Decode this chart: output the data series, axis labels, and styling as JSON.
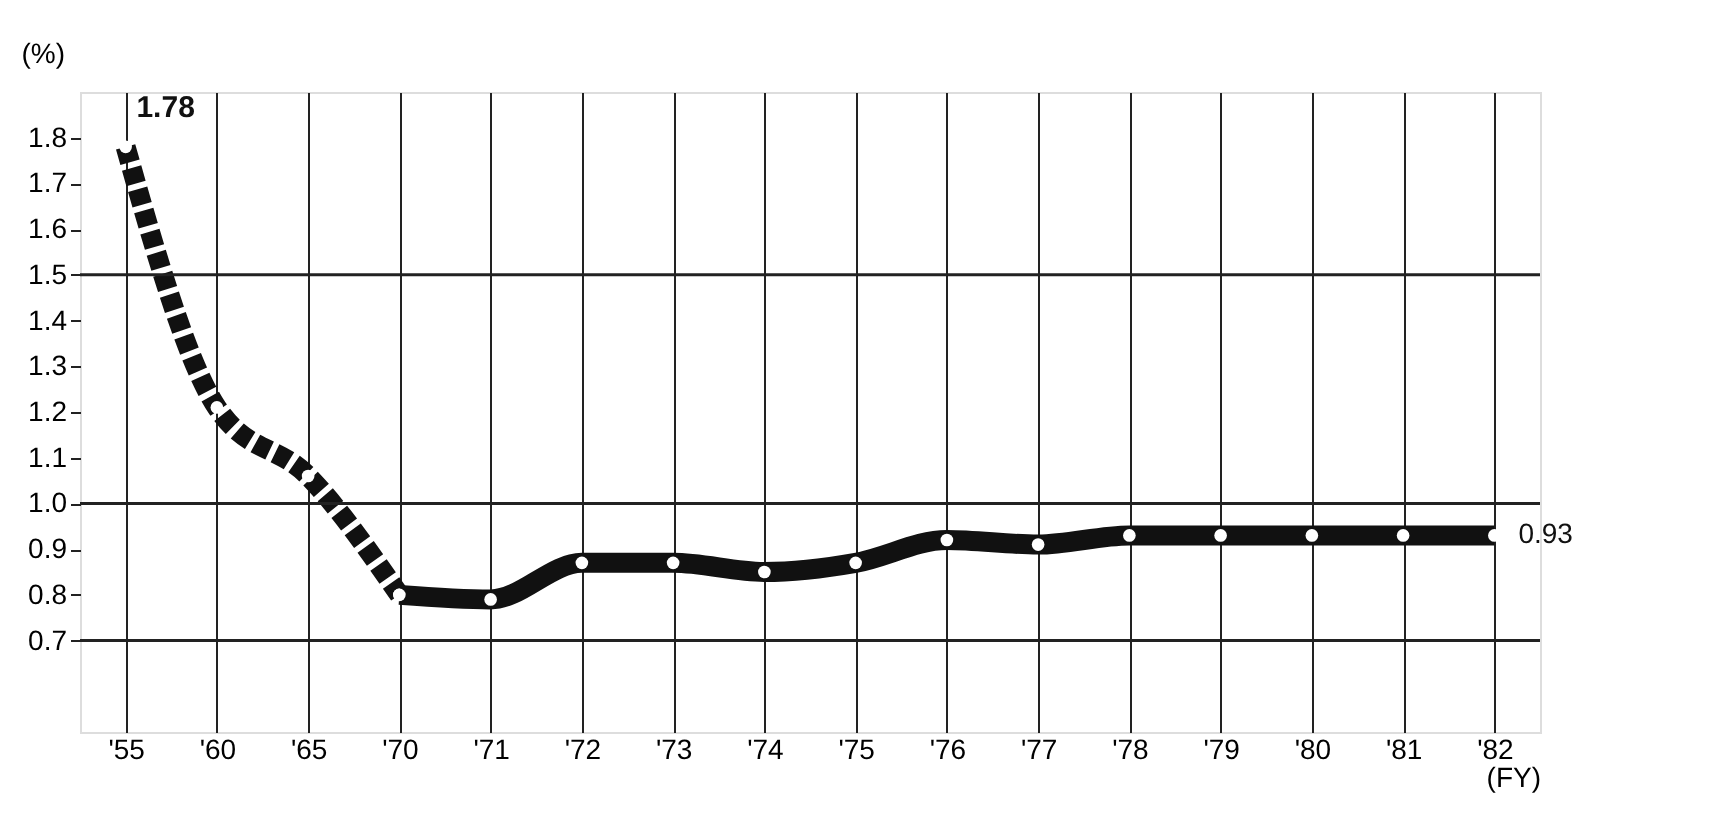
{
  "chart_data": {
    "type": "line",
    "ylabel": "(%)",
    "xlabel": "(FY)",
    "categories": [
      "'55",
      "'60",
      "'65",
      "'70",
      "'71",
      "'72",
      "'73",
      "'74",
      "'75",
      "'76",
      "'77",
      "'78",
      "'79",
      "'80",
      "'81",
      "'82"
    ],
    "series": [
      {
        "color": "#111111",
        "line_style": "dashed",
        "values": [
          1.78,
          1.21,
          1.06,
          0.8,
          null,
          null,
          null,
          null,
          null,
          null,
          null,
          null,
          null,
          null,
          null,
          null
        ]
      },
      {
        "color": "#111111",
        "line_style": "solid",
        "values": [
          null,
          null,
          null,
          0.8,
          0.79,
          0.87,
          0.87,
          0.85,
          0.87,
          0.92,
          0.91,
          0.93,
          0.93,
          0.93,
          0.93,
          0.93
        ]
      }
    ],
    "ylim": [
      0.5,
      1.9
    ],
    "yticks": [
      0.7,
      0.8,
      0.9,
      {
        "value": 1.0,
        "label": "1.0"
      },
      1.1,
      1.2,
      1.3,
      1.4,
      1.5,
      1.6,
      1.7,
      1.8
    ],
    "grid": "x",
    "marker": "circle",
    "ref_lines": [
      {
        "axis": "y",
        "value": 0.7,
        "label": null
      },
      {
        "axis": "y",
        "value": 1.0,
        "label": null
      },
      {
        "axis": "y",
        "value": 1.5,
        "label": null
      }
    ],
    "annotations": [
      {
        "text": "1.78",
        "x": "'55",
        "y": 1.78
      },
      {
        "text": "0.93",
        "x": "'82",
        "y": 0.93
      }
    ]
  }
}
